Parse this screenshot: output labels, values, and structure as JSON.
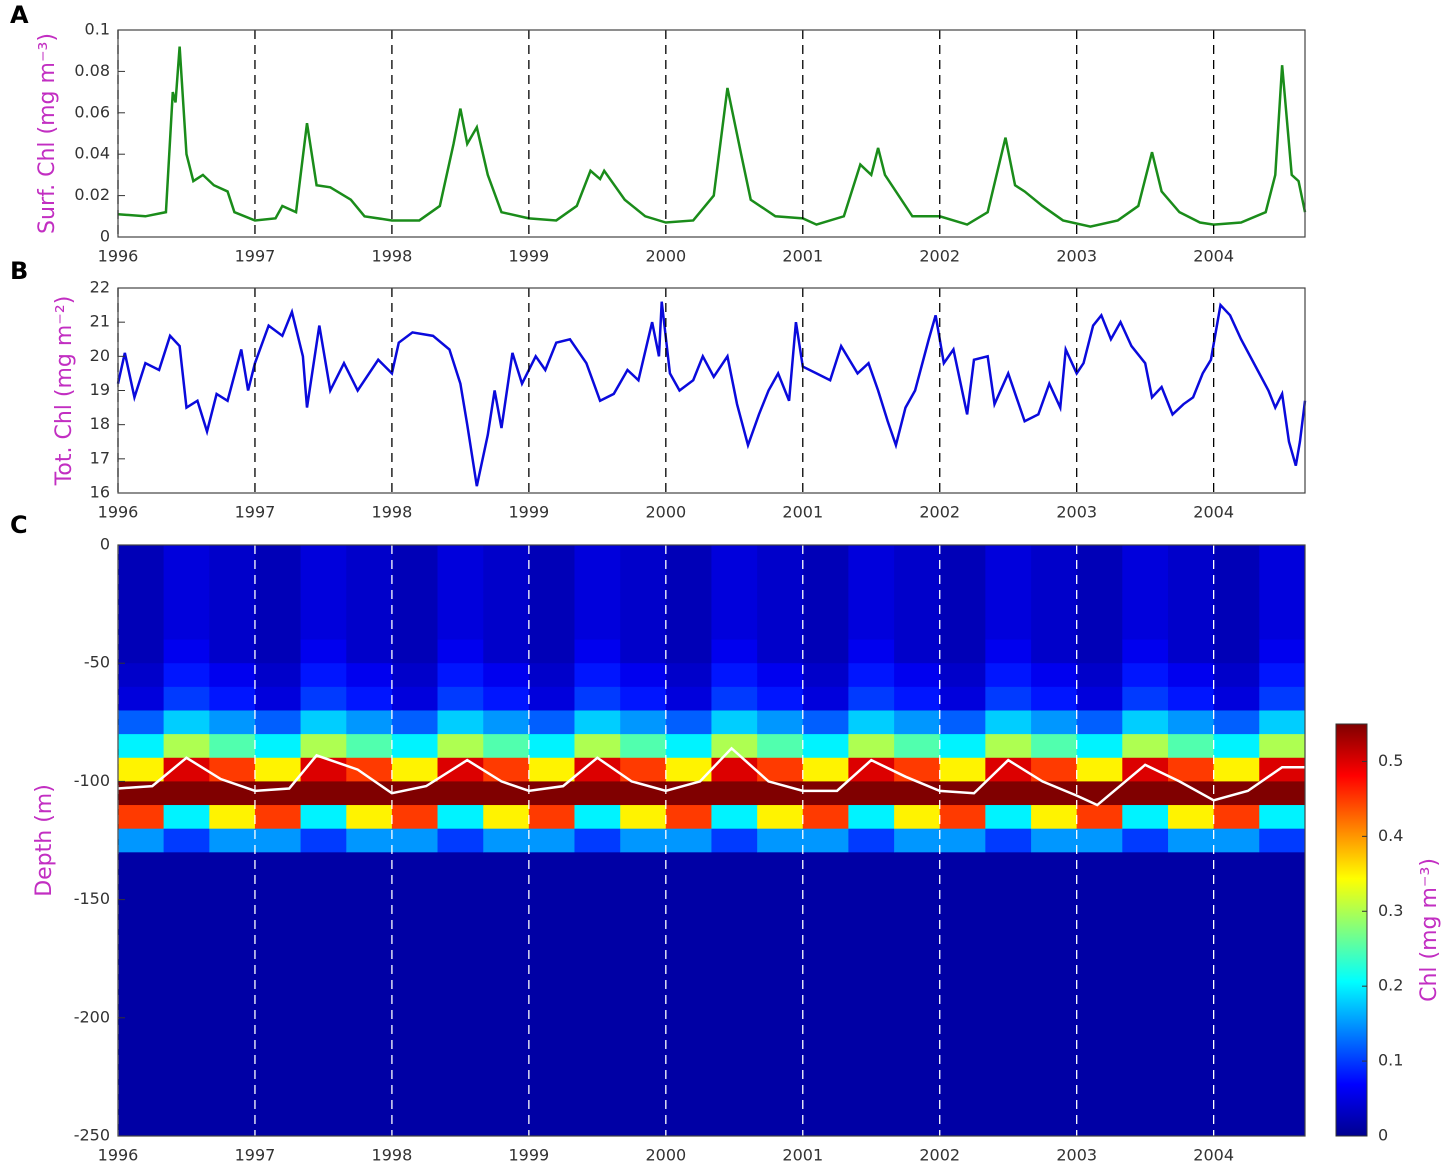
{
  "chart_data": [
    {
      "type": "line",
      "panel_label": "A",
      "ylabel": "Surf. Chl (mg m⁻³)",
      "color": "#1a8c1a",
      "xlim": [
        1996,
        2004.667
      ],
      "xticks": [
        1996,
        1997,
        1998,
        1999,
        2000,
        2001,
        2002,
        2003,
        2004
      ],
      "ylim": [
        0,
        0.1
      ],
      "yticks": [
        0,
        0.02,
        0.04,
        0.06,
        0.08,
        0.1
      ],
      "x": [
        1996,
        1996.2,
        1996.35,
        1996.4,
        1996.42,
        1996.45,
        1996.5,
        1996.55,
        1996.62,
        1996.7,
        1996.8,
        1996.85,
        1997,
        1997.15,
        1997.2,
        1997.3,
        1997.38,
        1997.45,
        1997.55,
        1997.7,
        1997.8,
        1998,
        1998.2,
        1998.35,
        1998.45,
        1998.5,
        1998.55,
        1998.62,
        1998.7,
        1998.8,
        1999,
        1999.2,
        1999.35,
        1999.45,
        1999.52,
        1999.55,
        1999.7,
        1999.85,
        2000,
        2000.2,
        2000.35,
        2000.45,
        2000.55,
        2000.62,
        2000.8,
        2001,
        2001.1,
        2001.3,
        2001.42,
        2001.5,
        2001.55,
        2001.6,
        2001.7,
        2001.8,
        2002,
        2002.2,
        2002.35,
        2002.48,
        2002.55,
        2002.62,
        2002.75,
        2002.9,
        2003.1,
        2003.3,
        2003.45,
        2003.55,
        2003.62,
        2003.75,
        2003.9,
        2004,
        2004.2,
        2004.38,
        2004.45,
        2004.5,
        2004.57,
        2004.62,
        2004.667
      ],
      "values": [
        0.011,
        0.01,
        0.012,
        0.07,
        0.065,
        0.092,
        0.04,
        0.027,
        0.03,
        0.025,
        0.022,
        0.012,
        0.008,
        0.009,
        0.015,
        0.012,
        0.055,
        0.025,
        0.024,
        0.018,
        0.01,
        0.008,
        0.008,
        0.015,
        0.045,
        0.062,
        0.045,
        0.053,
        0.03,
        0.012,
        0.009,
        0.008,
        0.015,
        0.032,
        0.028,
        0.032,
        0.018,
        0.01,
        0.007,
        0.008,
        0.02,
        0.072,
        0.04,
        0.018,
        0.01,
        0.009,
        0.006,
        0.01,
        0.035,
        0.03,
        0.043,
        0.03,
        0.02,
        0.01,
        0.01,
        0.006,
        0.012,
        0.048,
        0.025,
        0.022,
        0.015,
        0.008,
        0.005,
        0.008,
        0.015,
        0.041,
        0.022,
        0.012,
        0.007,
        0.006,
        0.007,
        0.012,
        0.03,
        0.083,
        0.03,
        0.027,
        0.012
      ]
    },
    {
      "type": "line",
      "panel_label": "B",
      "ylabel": "Tot. Chl (mg m⁻²)",
      "color": "#0a0adc",
      "xlim": [
        1996,
        2004.667
      ],
      "xticks": [
        1996,
        1997,
        1998,
        1999,
        2000,
        2001,
        2002,
        2003,
        2004
      ],
      "ylim": [
        16,
        22
      ],
      "yticks": [
        16,
        17,
        18,
        19,
        20,
        21,
        22
      ],
      "x": [
        1996,
        1996.05,
        1996.12,
        1996.2,
        1996.3,
        1996.38,
        1996.45,
        1996.5,
        1996.58,
        1996.65,
        1996.72,
        1996.8,
        1996.9,
        1996.95,
        1997,
        1997.1,
        1997.2,
        1997.27,
        1997.35,
        1997.38,
        1997.47,
        1997.55,
        1997.65,
        1997.75,
        1997.9,
        1998,
        1998.05,
        1998.15,
        1998.3,
        1998.42,
        1998.5,
        1998.55,
        1998.62,
        1998.7,
        1998.75,
        1998.8,
        1998.88,
        1998.95,
        1999.05,
        1999.12,
        1999.2,
        1999.3,
        1999.42,
        1999.52,
        1999.62,
        1999.72,
        1999.8,
        1999.9,
        1999.95,
        1999.97,
        2000.03,
        2000.1,
        2000.2,
        2000.27,
        2000.35,
        2000.45,
        2000.52,
        2000.6,
        2000.68,
        2000.75,
        2000.82,
        2000.9,
        2000.95,
        2001,
        2001.1,
        2001.2,
        2001.28,
        2001.4,
        2001.48,
        2001.55,
        2001.62,
        2001.68,
        2001.75,
        2001.82,
        2001.92,
        2001.97,
        2002.03,
        2002.1,
        2002.2,
        2002.25,
        2002.35,
        2002.4,
        2002.5,
        2002.62,
        2002.72,
        2002.8,
        2002.88,
        2002.92,
        2003,
        2003.05,
        2003.12,
        2003.18,
        2003.25,
        2003.32,
        2003.4,
        2003.5,
        2003.55,
        2003.62,
        2003.7,
        2003.78,
        2003.85,
        2003.92,
        2003.98,
        2004.05,
        2004.12,
        2004.2,
        2004.32,
        2004.4,
        2004.45,
        2004.5,
        2004.55,
        2004.6,
        2004.63,
        2004.667
      ],
      "values": [
        19.2,
        20.1,
        18.8,
        19.8,
        19.6,
        20.6,
        20.3,
        18.5,
        18.7,
        17.8,
        18.9,
        18.7,
        20.2,
        19,
        19.8,
        20.9,
        20.6,
        21.3,
        20,
        18.5,
        20.9,
        19,
        19.8,
        19,
        19.9,
        19.5,
        20.4,
        20.7,
        20.6,
        20.2,
        19.2,
        18,
        16.2,
        17.7,
        19,
        17.9,
        20.1,
        19.2,
        20,
        19.6,
        20.4,
        20.5,
        19.8,
        18.7,
        18.9,
        19.6,
        19.3,
        21,
        20,
        21.6,
        19.5,
        19,
        19.3,
        20,
        19.4,
        20,
        18.6,
        17.4,
        18.3,
        19,
        19.5,
        18.7,
        21,
        19.7,
        19.5,
        19.3,
        20.3,
        19.5,
        19.8,
        19,
        18.1,
        17.4,
        18.5,
        19,
        20.5,
        21.2,
        19.8,
        20.2,
        18.3,
        19.9,
        20,
        18.6,
        19.5,
        18.1,
        18.3,
        19.2,
        18.5,
        20.2,
        19.5,
        19.8,
        20.9,
        21.2,
        20.5,
        21,
        20.3,
        19.8,
        18.8,
        19.1,
        18.3,
        18.6,
        18.8,
        19.5,
        19.9,
        21.5,
        21.2,
        20.5,
        19.6,
        19,
        18.5,
        18.9,
        17.5,
        16.8,
        17.5,
        18.7
      ]
    },
    {
      "type": "heatmap",
      "panel_label": "C",
      "ylabel": "Depth (m)",
      "colorbar_label": "Chl (mg m⁻³)",
      "xlim": [
        1996,
        2004.667
      ],
      "xticks": [
        1996,
        1997,
        1998,
        1999,
        2000,
        2001,
        2002,
        2003,
        2004
      ],
      "ylim": [
        -250,
        0
      ],
      "yticks": [
        -250,
        -200,
        -150,
        -100,
        -50,
        0
      ],
      "clim": [
        0,
        0.55
      ],
      "cticks": [
        0,
        0.1,
        0.2,
        0.3,
        0.4,
        0.5
      ],
      "x_edges": [
        1996,
        1996.333,
        1996.667,
        1997,
        1997.333,
        1997.667,
        1998,
        1998.333,
        1998.667,
        1999,
        1999.333,
        1999.667,
        2000,
        2000.333,
        2000.667,
        2001,
        2001.333,
        2001.667,
        2002,
        2002.333,
        2002.667,
        2003,
        2003.333,
        2003.667,
        2004,
        2004.333,
        2004.667
      ],
      "y_edges": [
        0,
        -10,
        -20,
        -30,
        -40,
        -50,
        -60,
        -70,
        -80,
        -90,
        -100,
        -110,
        -120,
        -130,
        -250
      ],
      "values": [
        [
          0.03,
          0.03,
          0.03,
          0.03,
          0.03,
          0.04,
          0.05,
          0.12,
          0.2,
          0.35,
          0.55,
          0.45,
          0.15,
          0.02
        ],
        [
          0.05,
          0.05,
          0.05,
          0.05,
          0.06,
          0.08,
          0.1,
          0.18,
          0.3,
          0.5,
          0.55,
          0.2,
          0.1,
          0.02
        ],
        [
          0.04,
          0.04,
          0.04,
          0.04,
          0.04,
          0.06,
          0.08,
          0.15,
          0.25,
          0.45,
          0.55,
          0.35,
          0.15,
          0.02
        ],
        [
          0.03,
          0.03,
          0.03,
          0.03,
          0.03,
          0.04,
          0.05,
          0.12,
          0.2,
          0.35,
          0.55,
          0.45,
          0.15,
          0.02
        ],
        [
          0.05,
          0.05,
          0.05,
          0.05,
          0.06,
          0.08,
          0.1,
          0.18,
          0.3,
          0.5,
          0.55,
          0.2,
          0.1,
          0.02
        ],
        [
          0.04,
          0.04,
          0.04,
          0.04,
          0.04,
          0.06,
          0.08,
          0.15,
          0.25,
          0.45,
          0.55,
          0.35,
          0.15,
          0.02
        ],
        [
          0.03,
          0.03,
          0.03,
          0.03,
          0.03,
          0.04,
          0.05,
          0.12,
          0.2,
          0.35,
          0.55,
          0.45,
          0.15,
          0.02
        ],
        [
          0.05,
          0.05,
          0.05,
          0.05,
          0.06,
          0.08,
          0.1,
          0.18,
          0.3,
          0.5,
          0.55,
          0.2,
          0.1,
          0.02
        ],
        [
          0.04,
          0.04,
          0.04,
          0.04,
          0.04,
          0.06,
          0.08,
          0.15,
          0.25,
          0.45,
          0.55,
          0.35,
          0.15,
          0.02
        ],
        [
          0.03,
          0.03,
          0.03,
          0.03,
          0.03,
          0.04,
          0.05,
          0.12,
          0.2,
          0.35,
          0.55,
          0.45,
          0.15,
          0.02
        ],
        [
          0.05,
          0.05,
          0.05,
          0.05,
          0.06,
          0.08,
          0.1,
          0.18,
          0.3,
          0.5,
          0.55,
          0.2,
          0.1,
          0.02
        ],
        [
          0.04,
          0.04,
          0.04,
          0.04,
          0.04,
          0.06,
          0.08,
          0.15,
          0.25,
          0.45,
          0.55,
          0.35,
          0.15,
          0.02
        ],
        [
          0.03,
          0.03,
          0.03,
          0.03,
          0.03,
          0.04,
          0.05,
          0.12,
          0.2,
          0.35,
          0.55,
          0.45,
          0.15,
          0.02
        ],
        [
          0.05,
          0.05,
          0.05,
          0.05,
          0.06,
          0.08,
          0.1,
          0.18,
          0.3,
          0.5,
          0.55,
          0.2,
          0.1,
          0.02
        ],
        [
          0.04,
          0.04,
          0.04,
          0.04,
          0.04,
          0.06,
          0.08,
          0.15,
          0.25,
          0.45,
          0.55,
          0.35,
          0.15,
          0.02
        ],
        [
          0.03,
          0.03,
          0.03,
          0.03,
          0.03,
          0.04,
          0.05,
          0.12,
          0.2,
          0.35,
          0.55,
          0.45,
          0.15,
          0.02
        ],
        [
          0.05,
          0.05,
          0.05,
          0.05,
          0.06,
          0.08,
          0.1,
          0.18,
          0.3,
          0.5,
          0.55,
          0.2,
          0.1,
          0.02
        ],
        [
          0.04,
          0.04,
          0.04,
          0.04,
          0.04,
          0.06,
          0.08,
          0.15,
          0.25,
          0.45,
          0.55,
          0.35,
          0.15,
          0.02
        ],
        [
          0.03,
          0.03,
          0.03,
          0.03,
          0.03,
          0.04,
          0.05,
          0.12,
          0.2,
          0.35,
          0.55,
          0.45,
          0.15,
          0.02
        ],
        [
          0.05,
          0.05,
          0.05,
          0.05,
          0.06,
          0.08,
          0.1,
          0.18,
          0.3,
          0.5,
          0.55,
          0.2,
          0.1,
          0.02
        ],
        [
          0.04,
          0.04,
          0.04,
          0.04,
          0.04,
          0.06,
          0.08,
          0.15,
          0.25,
          0.45,
          0.55,
          0.35,
          0.15,
          0.02
        ],
        [
          0.03,
          0.03,
          0.03,
          0.03,
          0.03,
          0.04,
          0.05,
          0.12,
          0.2,
          0.35,
          0.55,
          0.45,
          0.15,
          0.02
        ],
        [
          0.05,
          0.05,
          0.05,
          0.05,
          0.06,
          0.08,
          0.1,
          0.18,
          0.3,
          0.5,
          0.55,
          0.2,
          0.1,
          0.02
        ],
        [
          0.04,
          0.04,
          0.04,
          0.04,
          0.04,
          0.06,
          0.08,
          0.15,
          0.25,
          0.45,
          0.55,
          0.35,
          0.15,
          0.02
        ],
        [
          0.03,
          0.03,
          0.03,
          0.03,
          0.03,
          0.04,
          0.05,
          0.12,
          0.2,
          0.35,
          0.55,
          0.45,
          0.15,
          0.02
        ],
        [
          0.05,
          0.05,
          0.05,
          0.05,
          0.06,
          0.08,
          0.1,
          0.18,
          0.3,
          0.5,
          0.55,
          0.2,
          0.1,
          0.02
        ]
      ],
      "line": {
        "color": "#ffffff",
        "x": [
          1996,
          1996.25,
          1996.5,
          1996.75,
          1997,
          1997.25,
          1997.45,
          1997.75,
          1998,
          1998.25,
          1998.55,
          1998.8,
          1999,
          1999.25,
          1999.5,
          1999.75,
          2000,
          2000.25,
          2000.48,
          2000.75,
          2001,
          2001.25,
          2001.5,
          2001.75,
          2002,
          2002.25,
          2002.5,
          2002.75,
          2003,
          2003.15,
          2003.5,
          2003.75,
          2004,
          2004.25,
          2004.5,
          2004.667
        ],
        "values": [
          -103,
          -102,
          -90,
          -99,
          -104,
          -103,
          -89,
          -95,
          -105,
          -102,
          -91,
          -100,
          -104,
          -102,
          -90,
          -100,
          -104,
          -100,
          -86,
          -100,
          -104,
          -104,
          -91,
          -98,
          -104,
          -105,
          -91,
          -100,
          -106,
          -110,
          -93,
          -100,
          -108,
          -104,
          -94,
          -94
        ]
      }
    }
  ]
}
